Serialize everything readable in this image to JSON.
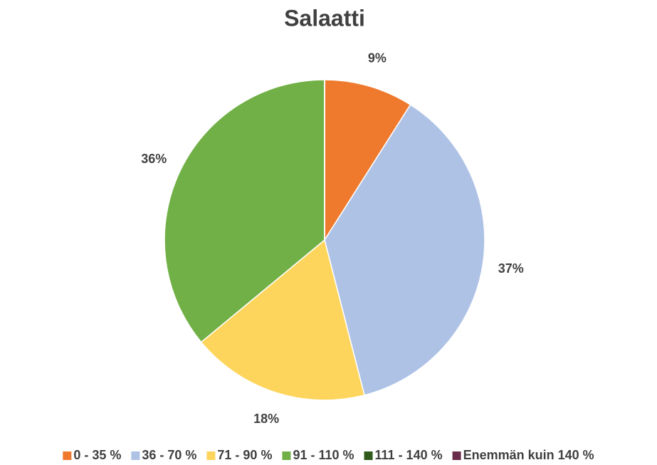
{
  "chart_data": {
    "type": "pie",
    "title": "Salaatti",
    "categories": [
      "0 - 35 %",
      "36 - 70 %",
      "71 - 90 %",
      "91 - 110 %",
      "111 - 140 %",
      "Enemmän kuin 140 %"
    ],
    "values": [
      9,
      37,
      18,
      36,
      0,
      0
    ],
    "value_labels": [
      "9%",
      "37%",
      "18%",
      "36%",
      null,
      null
    ],
    "colors": [
      "#ef7a2e",
      "#aec2e6",
      "#fdd55c",
      "#71b046",
      "#2f5a1c",
      "#6b2d4c"
    ],
    "legend": "bottom"
  }
}
